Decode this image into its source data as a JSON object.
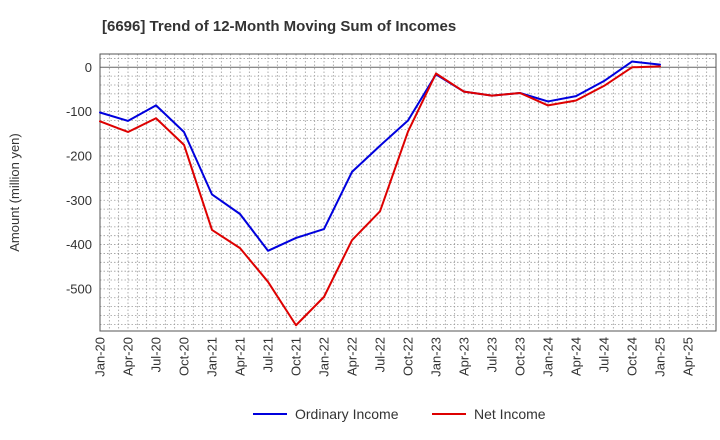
{
  "chart_data": {
    "type": "line",
    "title": "[6696]  Trend of 12-Month Moving Sum of Incomes",
    "xlabel": "",
    "ylabel": "Amount (million yen)",
    "ylim": [
      -595,
      30
    ],
    "yticks": [
      0,
      -100,
      -200,
      -300,
      -400,
      -500
    ],
    "tick_labels": [
      "Jan-20",
      "Apr-20",
      "Jul-20",
      "Oct-20",
      "Jan-21",
      "Apr-21",
      "Jul-21",
      "Oct-21",
      "Jan-22",
      "Apr-22",
      "Jul-22",
      "Oct-22",
      "Jan-23",
      "Apr-23",
      "Jul-23",
      "Oct-23",
      "Jan-24",
      "Apr-24",
      "Jul-24",
      "Oct-24",
      "Jan-25",
      "Apr-25"
    ],
    "categories": [
      "Jan-20",
      "Apr-20",
      "Jul-20",
      "Oct-20",
      "Jan-21",
      "Apr-21",
      "Jul-21",
      "Oct-21",
      "Jan-22",
      "Apr-22",
      "Jul-22",
      "Oct-22",
      "Jan-23",
      "Apr-23",
      "Jul-23",
      "Oct-23",
      "Jan-24",
      "Apr-24",
      "Jul-24",
      "Oct-24",
      "Jan-25"
    ],
    "grid": true,
    "legend_position": "bottom",
    "series": [
      {
        "name": "Ordinary Income",
        "color": "#0000dd",
        "values": [
          -102,
          -121,
          -86,
          -146,
          -287,
          -331,
          -414,
          -385,
          -365,
          -236,
          -177,
          -120,
          -16,
          -55,
          -64,
          -58,
          -77,
          -65,
          -31,
          13,
          6
        ]
      },
      {
        "name": "Net Income",
        "color": "#dd0000",
        "values": [
          -122,
          -146,
          -115,
          -175,
          -367,
          -408,
          -484,
          -582,
          -518,
          -390,
          -325,
          -145,
          -14,
          -55,
          -64,
          -58,
          -86,
          -75,
          -42,
          0,
          2
        ]
      }
    ]
  }
}
